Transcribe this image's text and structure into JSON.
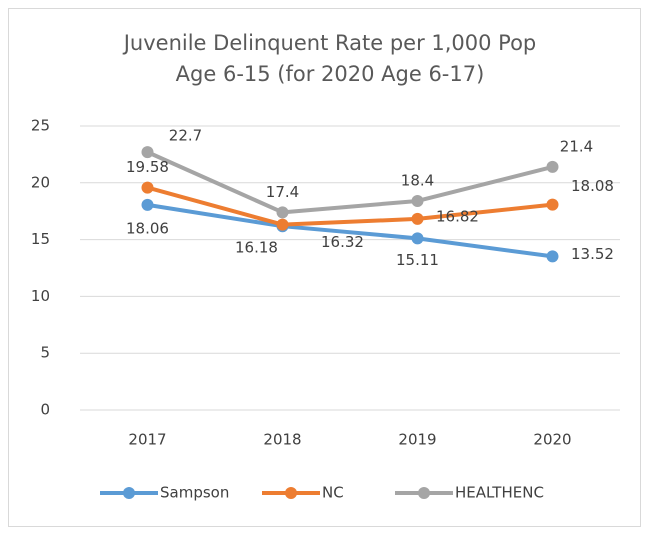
{
  "chart_data": {
    "type": "line",
    "title": [
      "Juvenile Delinquent Rate per 1,000 Pop",
      "Age 6-15 (for 2020 Age 6-17)"
    ],
    "categories": [
      "2017",
      "2018",
      "2019",
      "2020"
    ],
    "series": [
      {
        "name": "Sampson",
        "color": "#5b9bd5",
        "values": [
          18.06,
          16.18,
          15.11,
          13.52
        ]
      },
      {
        "name": "NC",
        "color": "#ed7d31",
        "values": [
          19.58,
          16.32,
          16.82,
          18.08
        ]
      },
      {
        "name": "HEALTHENC",
        "color": "#a5a5a5",
        "values": [
          22.7,
          17.4,
          18.4,
          21.4
        ]
      }
    ],
    "ylim": [
      0,
      25
    ],
    "yticks": [
      0,
      5,
      10,
      15,
      20,
      25
    ],
    "grid": true,
    "legend": "bottom"
  }
}
